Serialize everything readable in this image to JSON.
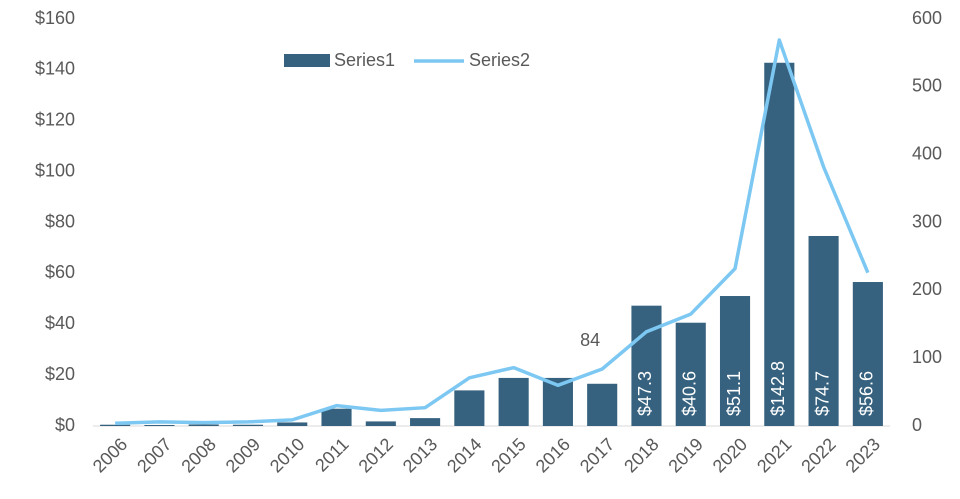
{
  "chart_data": {
    "type": "bar_line",
    "categories": [
      "2006",
      "2007",
      "2008",
      "2009",
      "2010",
      "2011",
      "2012",
      "2013",
      "2014",
      "2015",
      "2016",
      "2017",
      "2018",
      "2019",
      "2020",
      "2021",
      "2022",
      "2023"
    ],
    "series": [
      {
        "name": "Series1",
        "type": "bar",
        "color": "#36627f",
        "values": [
          0.5,
          0.4,
          0.6,
          0.5,
          1.4,
          6.8,
          1.8,
          3.1,
          14,
          18.9,
          18.9,
          16.6,
          47.3,
          40.6,
          51.1,
          142.8,
          74.7,
          56.6
        ],
        "value_labels": [
          null,
          null,
          null,
          null,
          null,
          null,
          null,
          null,
          null,
          null,
          null,
          null,
          "$47.3",
          "$40.6",
          "$51.1",
          "$142.8",
          "$74.7",
          "$56.6"
        ]
      },
      {
        "name": "Series2",
        "type": "line",
        "axis": "y2",
        "color": "#7dc8f2",
        "values": [
          4,
          6,
          5,
          6,
          9,
          30,
          23,
          27,
          71,
          86,
          60,
          84,
          139,
          165,
          232,
          569,
          382,
          226
        ]
      }
    ],
    "annotations": [
      {
        "text": "84",
        "category": "2017"
      }
    ],
    "ylim": [
      0,
      160
    ],
    "yticks": [
      {
        "value": 0,
        "label": "$0"
      },
      {
        "value": 20,
        "label": "$20"
      },
      {
        "value": 40,
        "label": "$40"
      },
      {
        "value": 60,
        "label": "$60"
      },
      {
        "value": 80,
        "label": "$80"
      },
      {
        "value": 100,
        "label": "$100"
      },
      {
        "value": 120,
        "label": "$120"
      },
      {
        "value": 140,
        "label": "$140"
      },
      {
        "value": 160,
        "label": "$160"
      }
    ],
    "y2lim": [
      0,
      600
    ],
    "y2ticks": [
      0,
      100,
      200,
      300,
      400,
      500,
      600
    ],
    "grid": false,
    "legend": "top"
  }
}
